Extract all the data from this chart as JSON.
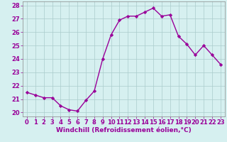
{
  "x": [
    0,
    1,
    2,
    3,
    4,
    5,
    6,
    7,
    8,
    9,
    10,
    11,
    12,
    13,
    14,
    15,
    16,
    17,
    18,
    19,
    20,
    21,
    22,
    23
  ],
  "y": [
    21.5,
    21.3,
    21.1,
    21.1,
    20.5,
    20.2,
    20.1,
    20.9,
    21.6,
    24.0,
    25.8,
    26.9,
    27.2,
    27.2,
    27.5,
    27.8,
    27.2,
    27.3,
    25.7,
    25.1,
    24.3,
    25.0,
    24.3,
    23.6
  ],
  "line_color": "#990099",
  "marker": "D",
  "marker_size": 2.2,
  "bg_color": "#d6f0f0",
  "grid_color": "#aacccc",
  "xlabel": "Windchill (Refroidissement éolien,°C)",
  "tick_color": "#990099",
  "xlabel_fontsize": 6.5,
  "ylabel_ticks": [
    20,
    21,
    22,
    23,
    24,
    25,
    26,
    27,
    28
  ],
  "xlim": [
    -0.5,
    23.5
  ],
  "ylim": [
    19.7,
    28.3
  ],
  "tick_fontsize": 6.0,
  "line_width": 1.0
}
